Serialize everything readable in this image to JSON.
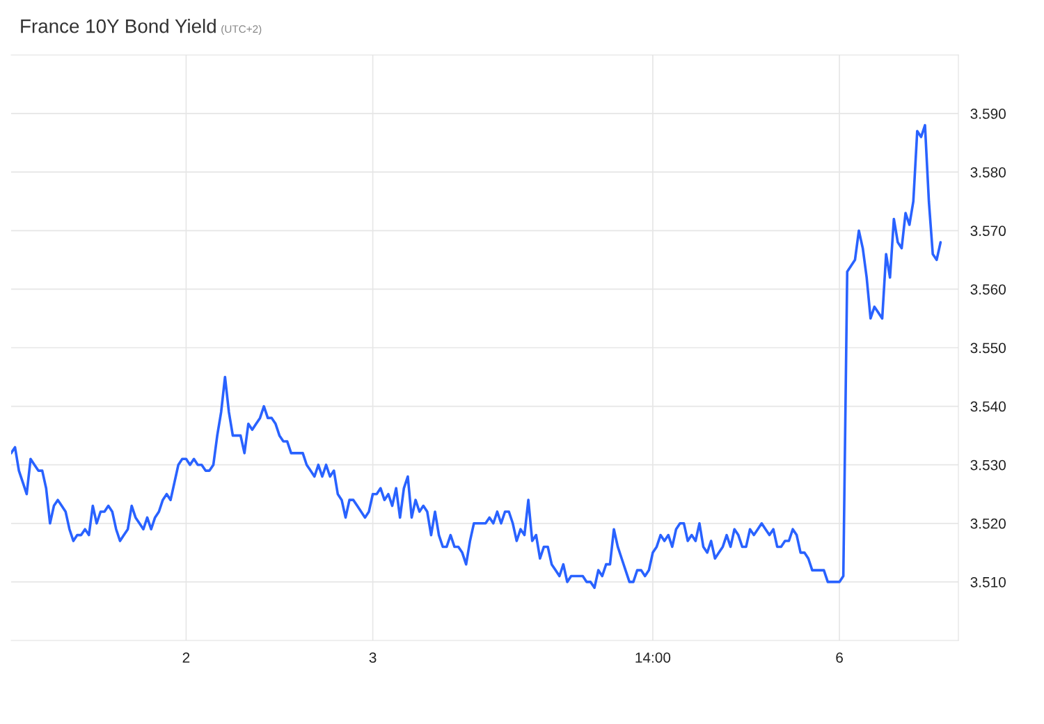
{
  "chart_data": {
    "type": "line",
    "title": "France 10Y Bond Yield",
    "subtitle": "(UTC+2)",
    "categories": [
      null,
      null,
      null,
      null,
      null,
      null,
      null,
      null,
      null,
      null,
      null,
      null,
      null,
      null,
      null,
      null,
      null,
      null,
      null,
      null,
      null,
      null,
      null,
      null,
      null,
      null,
      null,
      null,
      null,
      null,
      null,
      null,
      null,
      null,
      null,
      null,
      null,
      null,
      null,
      null,
      null,
      null,
      null,
      null,
      null,
      "2",
      null,
      null,
      null,
      null,
      null,
      null,
      null,
      null,
      null,
      null,
      null,
      null,
      null,
      null,
      null,
      null,
      null,
      null,
      null,
      null,
      null,
      null,
      null,
      null,
      null,
      null,
      null,
      null,
      null,
      null,
      null,
      null,
      null,
      null,
      null,
      null,
      null,
      null,
      null,
      null,
      null,
      null,
      null,
      null,
      null,
      null,
      null,
      "3",
      null,
      null,
      null,
      null,
      null,
      null,
      null,
      null,
      null,
      null,
      null,
      null,
      null,
      null,
      null,
      null,
      null,
      null,
      null,
      null,
      null,
      null,
      null,
      null,
      null,
      null,
      null,
      null,
      null,
      null,
      null,
      null,
      null,
      null,
      null,
      null,
      null,
      null,
      null,
      null,
      null,
      null,
      null,
      null,
      null,
      null,
      null,
      null,
      null,
      null,
      null,
      null,
      null,
      null,
      null,
      null,
      null,
      null,
      null,
      null,
      null,
      null,
      null,
      null,
      null,
      null,
      null,
      null,
      null,
      null,
      null,
      "14:00",
      null,
      null,
      null,
      null,
      null,
      null,
      null,
      null,
      null,
      null,
      null,
      null,
      null,
      null,
      null,
      null,
      null,
      null,
      null,
      null,
      null,
      null,
      null,
      null,
      null,
      null,
      null,
      null,
      null,
      null,
      null,
      null,
      null,
      null,
      null,
      null,
      null,
      null,
      null,
      null,
      null,
      null,
      null,
      null,
      null,
      null,
      null,
      "6",
      null,
      null,
      null,
      null,
      null,
      null,
      null,
      null,
      null,
      null,
      null,
      null,
      null,
      null,
      null,
      null,
      null,
      null,
      null,
      null,
      null,
      null,
      null,
      null,
      null,
      null
    ],
    "series": [
      {
        "color": "#2962ff",
        "values": [
          3.532,
          3.533,
          3.529,
          3.527,
          3.525,
          3.531,
          3.53,
          3.529,
          3.529,
          3.526,
          3.52,
          3.523,
          3.524,
          3.523,
          3.522,
          3.519,
          3.517,
          3.518,
          3.518,
          3.519,
          3.518,
          3.523,
          3.52,
          3.522,
          3.522,
          3.523,
          3.522,
          3.519,
          3.517,
          3.518,
          3.519,
          3.523,
          3.521,
          3.52,
          3.519,
          3.521,
          3.519,
          3.521,
          3.522,
          3.524,
          3.525,
          3.524,
          3.527,
          3.53,
          3.531,
          3.531,
          3.53,
          3.531,
          3.53,
          3.53,
          3.529,
          3.529,
          3.53,
          3.535,
          3.539,
          3.545,
          3.539,
          3.535,
          3.535,
          3.535,
          3.532,
          3.537,
          3.536,
          3.537,
          3.538,
          3.54,
          3.538,
          3.538,
          3.537,
          3.535,
          3.534,
          3.534,
          3.532,
          3.532,
          3.532,
          3.532,
          3.53,
          3.529,
          3.528,
          3.53,
          3.528,
          3.53,
          3.528,
          3.529,
          3.525,
          3.524,
          3.521,
          3.524,
          3.524,
          3.523,
          3.522,
          3.521,
          3.522,
          3.525,
          3.525,
          3.526,
          3.524,
          3.525,
          3.523,
          3.526,
          3.521,
          3.526,
          3.528,
          3.521,
          3.524,
          3.522,
          3.523,
          3.522,
          3.518,
          3.522,
          3.518,
          3.516,
          3.516,
          3.518,
          3.516,
          3.516,
          3.515,
          3.513,
          3.517,
          3.52,
          3.52,
          3.52,
          3.52,
          3.521,
          3.52,
          3.522,
          3.52,
          3.522,
          3.522,
          3.52,
          3.517,
          3.519,
          3.518,
          3.524,
          3.517,
          3.518,
          3.514,
          3.516,
          3.516,
          3.513,
          3.512,
          3.511,
          3.513,
          3.51,
          3.511,
          3.511,
          3.511,
          3.511,
          3.51,
          3.51,
          3.509,
          3.512,
          3.511,
          3.513,
          3.513,
          3.519,
          3.516,
          3.514,
          3.512,
          3.51,
          3.51,
          3.512,
          3.512,
          3.511,
          3.512,
          3.515,
          3.516,
          3.518,
          3.517,
          3.518,
          3.516,
          3.519,
          3.52,
          3.52,
          3.517,
          3.518,
          3.517,
          3.52,
          3.516,
          3.515,
          3.517,
          3.514,
          3.515,
          3.516,
          3.518,
          3.516,
          3.519,
          3.518,
          3.516,
          3.516,
          3.519,
          3.518,
          3.519,
          3.52,
          3.519,
          3.518,
          3.519,
          3.516,
          3.516,
          3.517,
          3.517,
          3.519,
          3.518,
          3.515,
          3.515,
          3.514,
          3.512,
          3.512,
          3.512,
          3.512,
          3.51,
          3.51,
          3.51,
          3.51,
          3.511,
          3.563,
          3.564,
          3.565,
          3.57,
          3.567,
          3.562,
          3.555,
          3.557,
          3.556,
          3.555,
          3.566,
          3.562,
          3.572,
          3.568,
          3.567,
          3.573,
          3.571,
          3.575,
          3.587,
          3.586,
          3.588,
          3.575,
          3.566,
          3.565,
          3.568
        ]
      }
    ],
    "ylim": [
      3.5,
      3.6
    ],
    "yticks": [
      {
        "value": 3.51,
        "label": "3.510"
      },
      {
        "value": 3.52,
        "label": "3.520"
      },
      {
        "value": 3.53,
        "label": "3.530"
      },
      {
        "value": 3.54,
        "label": "3.540"
      },
      {
        "value": 3.55,
        "label": "3.550"
      },
      {
        "value": 3.56,
        "label": "3.560"
      },
      {
        "value": 3.57,
        "label": "3.570"
      },
      {
        "value": 3.58,
        "label": "3.580"
      },
      {
        "value": 3.59,
        "label": "3.590"
      }
    ],
    "grid": true,
    "line_style": "solid",
    "marker": "none"
  }
}
